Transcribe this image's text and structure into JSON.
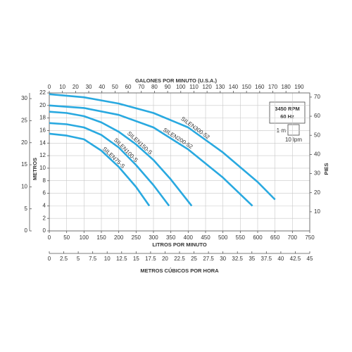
{
  "chart_data": {
    "type": "line",
    "x_label": "LITROS POR MINUTO",
    "x2_label": "GALONES POR MINUTO (U.S.A.)",
    "x3_label": "METROS CÚBICOS POR HORA",
    "y_label": "METROS",
    "y2_label": "PIES",
    "speed": "3450 RPM",
    "frequency": "60 Hz",
    "scale_height": "1 m",
    "scale_width": "10 lpm",
    "xlim": [
      0,
      750
    ],
    "xticks": [
      0,
      50,
      100,
      150,
      200,
      250,
      300,
      350,
      400,
      450,
      500,
      550,
      600,
      650,
      700,
      750
    ],
    "x2lim": [
      0,
      198.1
    ],
    "x2ticks": [
      0,
      10,
      20,
      30,
      40,
      50,
      60,
      70,
      80,
      90,
      100,
      110,
      120,
      130,
      140,
      150,
      160,
      170,
      180,
      190
    ],
    "x3lim": [
      0,
      45
    ],
    "x3ticks": [
      0,
      2.5,
      5,
      7.5,
      10,
      12.5,
      15,
      17.5,
      20,
      22.5,
      25,
      27.5,
      30,
      32.5,
      35,
      37.5,
      40,
      42.5,
      45
    ],
    "ylim": [
      0,
      22
    ],
    "yticks": [
      0,
      2,
      4,
      6,
      8,
      10,
      12,
      14,
      16,
      18,
      20,
      22
    ],
    "y2lim": [
      0,
      72.18
    ],
    "y2ticks": [
      10,
      20,
      30,
      40,
      50,
      60,
      70
    ],
    "y3lim": [
      0,
      31.29
    ],
    "y3ticks": [
      0,
      5,
      10,
      15,
      20,
      25,
      30
    ],
    "grid": true,
    "series": [
      {
        "name": "SILEN300-52",
        "color": "#29a9e0",
        "x": [
          0,
          100,
          200,
          300,
          400,
          500,
          600,
          650
        ],
        "values": [
          21.8,
          21.3,
          20.3,
          18.8,
          16.5,
          12.5,
          7.8,
          5
        ]
      },
      {
        "name": "SILEN200-52",
        "color": "#29a9e0",
        "x": [
          0,
          100,
          200,
          300,
          400,
          500,
          585
        ],
        "values": [
          20,
          19.6,
          18.5,
          16.5,
          13,
          8.5,
          4
        ]
      },
      {
        "name": "SILEN150-S",
        "color": "#29a9e0",
        "x": [
          0,
          50,
          100,
          150,
          200,
          250,
          300,
          350,
          410
        ],
        "values": [
          19,
          18.8,
          18.3,
          17.3,
          15.8,
          13.8,
          11.3,
          8.2,
          4
        ]
      },
      {
        "name": "SILEN100-S",
        "color": "#29a9e0",
        "x": [
          0,
          50,
          100,
          150,
          200,
          250,
          300,
          345
        ],
        "values": [
          17.2,
          17,
          16.5,
          15.3,
          13.3,
          10.5,
          7.3,
          4
        ]
      },
      {
        "name": "SILEN75-S",
        "color": "#29a9e0",
        "x": [
          0,
          50,
          100,
          150,
          200,
          250,
          288
        ],
        "values": [
          15.5,
          15.2,
          14.6,
          12.8,
          10.2,
          7,
          4
        ]
      }
    ]
  }
}
